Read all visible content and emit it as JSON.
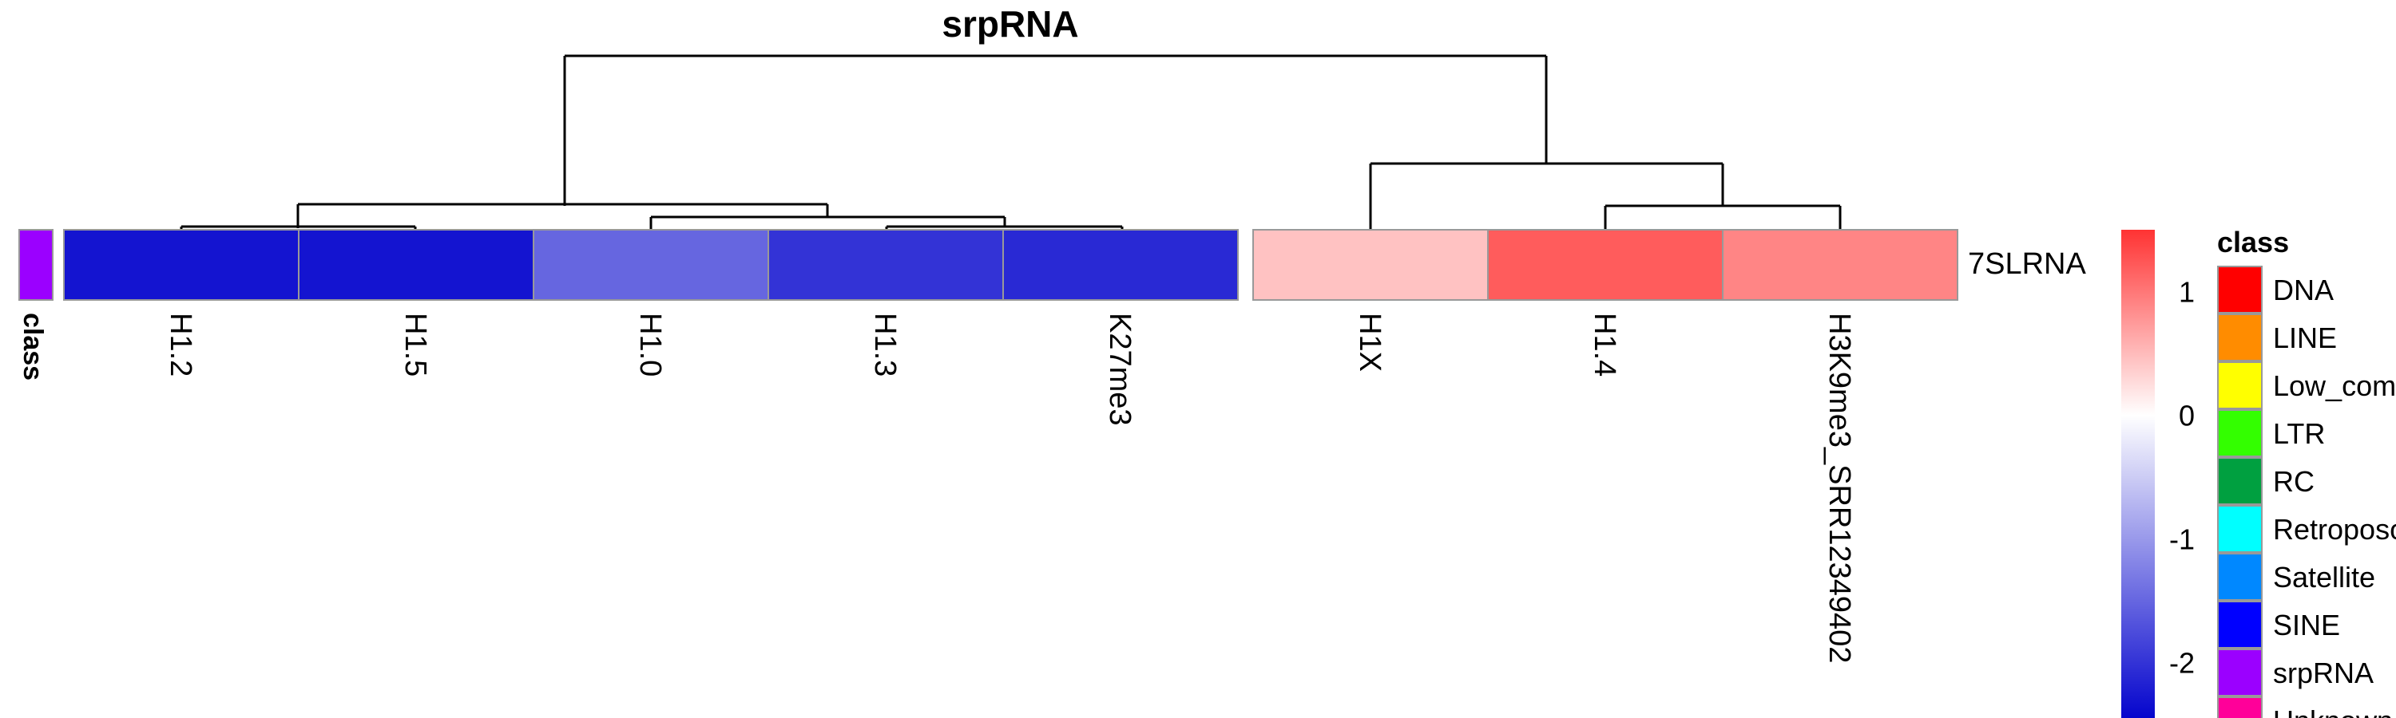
{
  "chart_data": {
    "type": "heatmap",
    "title": "srpRNA",
    "rows": [
      "7SLRNA"
    ],
    "column_groups": [
      [
        "H1.2",
        "H1.5",
        "H1.0",
        "H1.3",
        "K27me3"
      ],
      [
        "H1X",
        "H1.4",
        "H3K9me3_SRR12349402"
      ]
    ],
    "values": [
      [
        -2.3,
        -2.3,
        -1.5,
        -2.0,
        -2.1,
        0.45,
        1.2,
        0.9
      ]
    ],
    "row_annotation": {
      "label": "class",
      "value": "srpRNA",
      "color": "#9B00FF"
    },
    "color_scale": {
      "min": -2.5,
      "max": 1.5,
      "ticks": [
        1,
        0,
        -1,
        -2
      ],
      "low_color": "#0000CC",
      "mid_color": "#FFFFFF",
      "high_color": "#FF3333"
    },
    "legend": {
      "title": "class",
      "items": [
        {
          "label": "DNA",
          "color": "#FF0000"
        },
        {
          "label": "LINE",
          "color": "#FF8C00"
        },
        {
          "label": "Low_complexity",
          "color": "#FFFF00"
        },
        {
          "label": "LTR",
          "color": "#33FF00"
        },
        {
          "label": "RC",
          "color": "#00A040"
        },
        {
          "label": "Retroposon",
          "color": "#00FFFF"
        },
        {
          "label": "Satellite",
          "color": "#0088FF"
        },
        {
          "label": "SINE",
          "color": "#0000FF"
        },
        {
          "label": "srpRNA",
          "color": "#9B00FF"
        },
        {
          "label": "Unknown",
          "color": "#FF0099"
        }
      ]
    }
  }
}
